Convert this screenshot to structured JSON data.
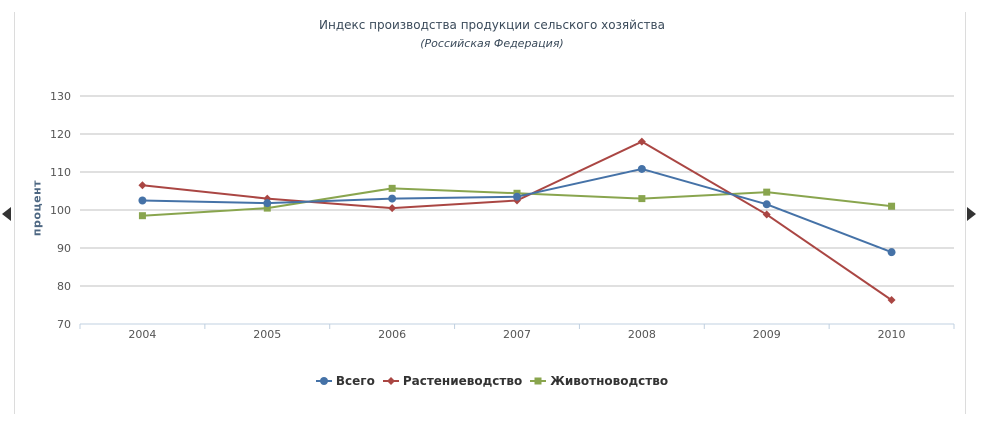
{
  "chart_data": {
    "type": "line",
    "title": "Индекс производства продукции сельского хозяйства",
    "subtitle": "(Российская Федерация)",
    "ylabel": "процент",
    "xlabel": "",
    "categories": [
      "2004",
      "2005",
      "2006",
      "2007",
      "2008",
      "2009",
      "2010"
    ],
    "ylim": [
      70,
      130
    ],
    "yticks": [
      70,
      80,
      90,
      100,
      110,
      120,
      130
    ],
    "grid": true,
    "legend_position": "bottom",
    "series": [
      {
        "name": "Всего",
        "color": "#4572a7",
        "marker": "circle",
        "values": [
          102.5,
          101.8,
          103.0,
          103.5,
          110.8,
          101.5,
          88.9
        ]
      },
      {
        "name": "Растениеводство",
        "color": "#aa4643",
        "marker": "diamond",
        "values": [
          106.5,
          103.0,
          100.5,
          102.5,
          118.0,
          98.8,
          76.3
        ]
      },
      {
        "name": "Животноводство",
        "color": "#89a54e",
        "marker": "square",
        "values": [
          98.5,
          100.5,
          105.7,
          104.4,
          103.0,
          104.7,
          101.0
        ]
      }
    ]
  }
}
